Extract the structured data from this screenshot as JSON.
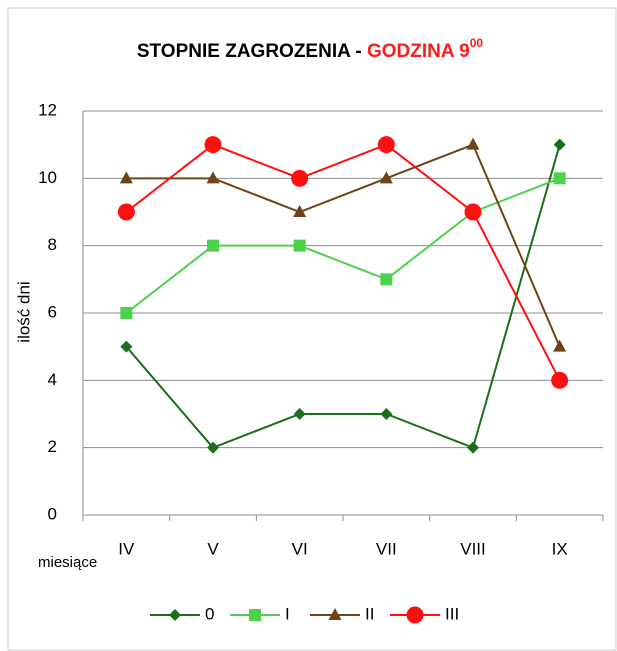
{
  "chart_data": {
    "type": "line",
    "title": "STOPNIE ZAGROZENIA - ",
    "title_highlight": "GODZINA 9",
    "title_superscript": "00",
    "y_label": "ilość dni",
    "x_label": "miesiące",
    "categories": [
      "IV",
      "V",
      "VI",
      "VII",
      "VIII",
      "IX"
    ],
    "series": [
      {
        "name": "0",
        "color": "#1b6e1b",
        "marker": "diamond",
        "values": [
          5,
          2,
          3,
          3,
          2,
          11
        ]
      },
      {
        "name": "I",
        "color": "#4cd14c",
        "marker": "square",
        "values": [
          6,
          8,
          8,
          7,
          9,
          10
        ]
      },
      {
        "name": "II",
        "color": "#6e4318",
        "marker": "triangle",
        "values": [
          10,
          10,
          9,
          10,
          11,
          5
        ]
      },
      {
        "name": "III",
        "color": "#ff1010",
        "marker": "circle",
        "values": [
          9,
          11,
          10,
          11,
          9,
          4
        ]
      }
    ],
    "ylim": [
      0,
      12
    ],
    "yticks": [
      0,
      2,
      4,
      6,
      8,
      10,
      12
    ],
    "grid": true,
    "legend": "bottom"
  }
}
